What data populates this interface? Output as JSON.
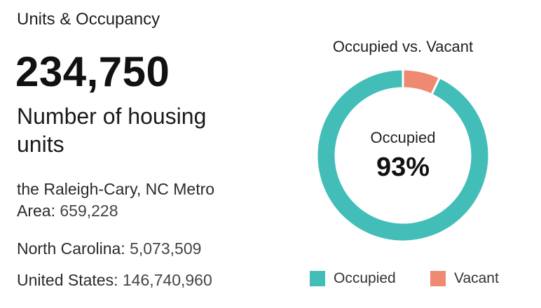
{
  "header": {
    "title": "Units & Occupancy"
  },
  "headline": {
    "value": "234,750",
    "label": "Number of housing units"
  },
  "comparisons": [
    {
      "name": "the Raleigh-Cary, NC Metro Area:",
      "value": "659,228"
    },
    {
      "name": "North Carolina:",
      "value": "5,073,509"
    },
    {
      "name": "United States:",
      "value": "146,740,960"
    }
  ],
  "chart_data": {
    "type": "pie",
    "title": "Occupied vs. Vacant",
    "categories": [
      "Occupied",
      "Vacant"
    ],
    "values": [
      93,
      7
    ],
    "colors": [
      "#42bdb8",
      "#ee8a72"
    ],
    "center_label": "Occupied",
    "center_value": "93%",
    "legend": "bottom"
  }
}
